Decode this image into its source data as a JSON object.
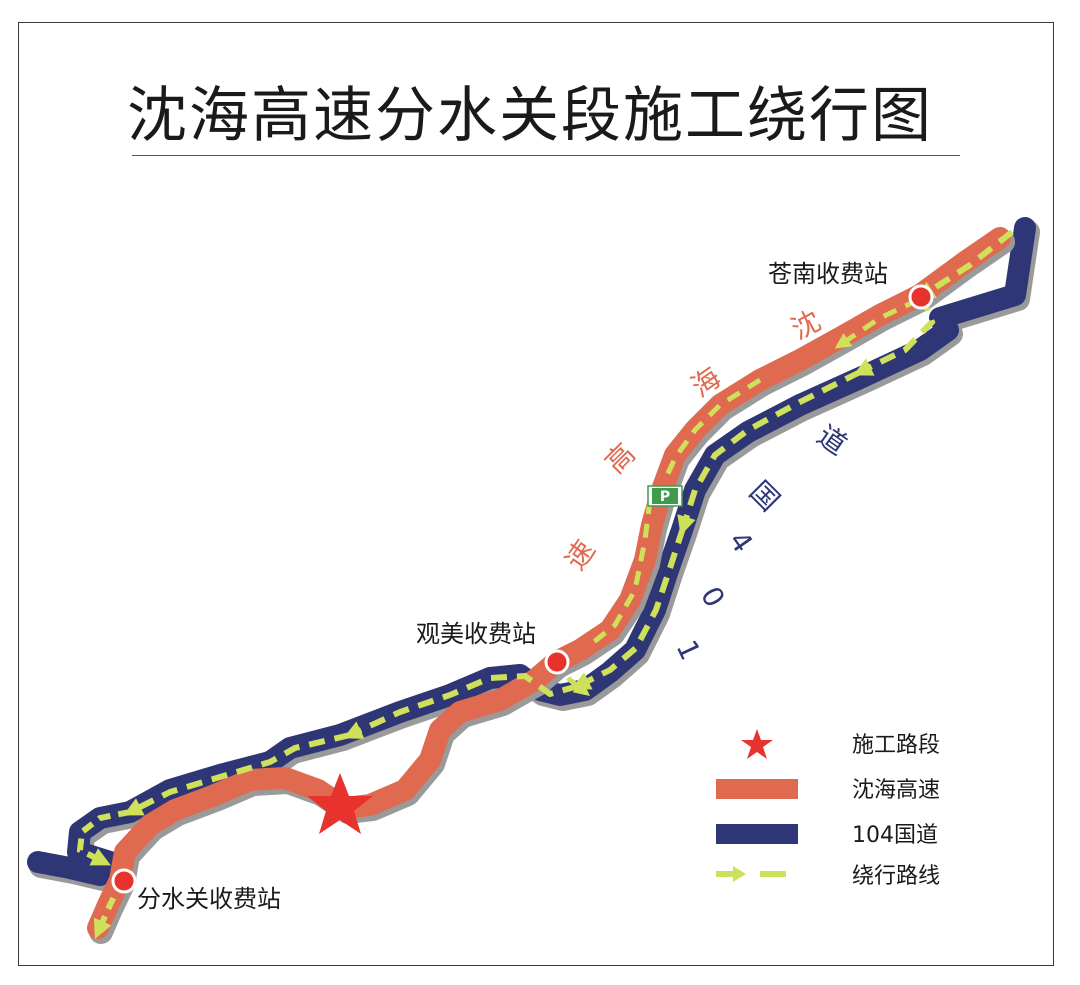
{
  "title": "沈海高速分水关段施工绕行图",
  "stations": {
    "cangnan": "苍南收费站",
    "guanmei": "观美收费站",
    "fenshuiguan": "分水关收费站"
  },
  "road_labels": {
    "expressway_chars": [
      "沈",
      "海",
      "高",
      "速"
    ],
    "national_chars": [
      "道",
      "国",
      "4",
      "0",
      "1"
    ]
  },
  "parking_symbol": "P",
  "legend": {
    "construction": "施工路段",
    "expressway": "沈海高速",
    "national": "104国道",
    "detour": "绕行路线"
  },
  "colors": {
    "expressway": "#e06a4f",
    "national": "#2e3676",
    "detour": "#cfe05a",
    "construction": "#e8322d",
    "station": "#e8322d",
    "parking": "#3f9a4d"
  }
}
